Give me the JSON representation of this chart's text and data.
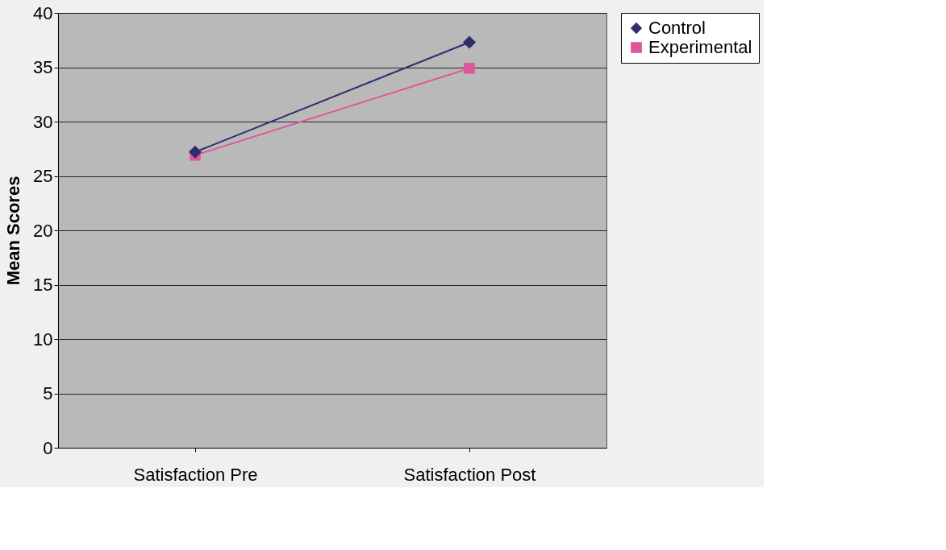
{
  "chart_data": {
    "type": "line",
    "ylabel": "Mean Scores",
    "categories": [
      "Satisfaction Pre",
      "Satisfaction Post"
    ],
    "series": [
      {
        "name": "Control",
        "color": "#2e2e6e",
        "marker": "diamond",
        "values": [
          27.2,
          37.3
        ]
      },
      {
        "name": "Experimental",
        "color": "#e0569a",
        "marker": "square",
        "values": [
          26.9,
          34.9
        ]
      }
    ],
    "ylim": [
      0,
      40
    ],
    "yticks": [
      0,
      5,
      10,
      15,
      20,
      25,
      30,
      35,
      40
    ],
    "grid": "y",
    "legend": "right"
  }
}
